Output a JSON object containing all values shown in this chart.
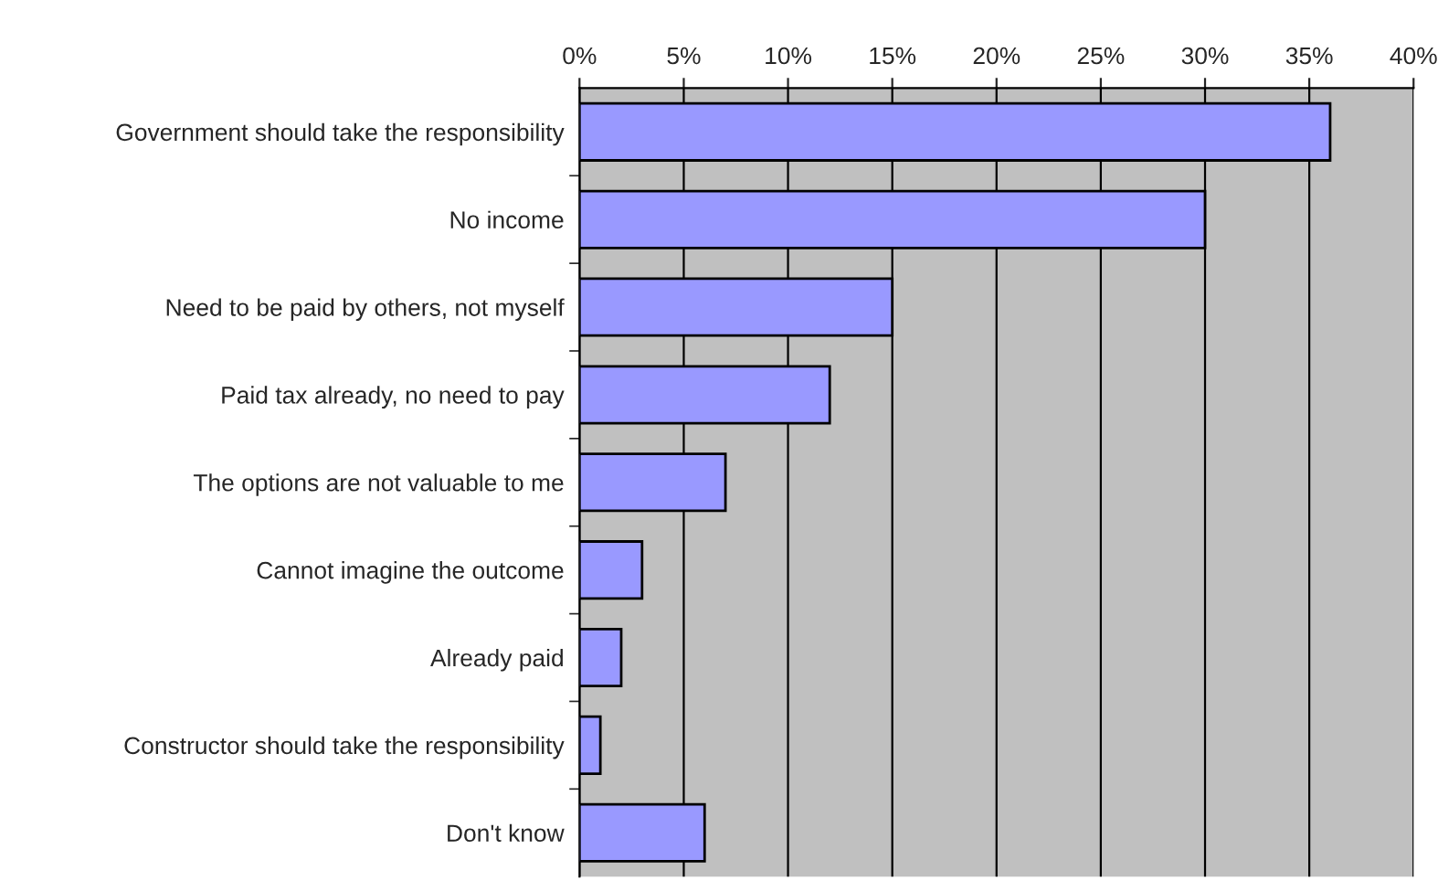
{
  "chart_data": {
    "type": "bar",
    "orientation": "horizontal",
    "categories": [
      "Government should take the responsibility",
      "No income",
      "Need to be paid by others, not myself",
      "Paid tax already, no need to pay",
      "The options are not valuable to me",
      "Cannot imagine the outcome",
      "Already paid",
      "Constructor should take the responsibility",
      "Don't know"
    ],
    "values": [
      36,
      30,
      15,
      12,
      7,
      3,
      2,
      1,
      6
    ],
    "color": "#9999ff",
    "xlim": [
      0,
      40
    ],
    "xticks": [
      {
        "value": 0,
        "label": "0%"
      },
      {
        "value": 5,
        "label": "5%"
      },
      {
        "value": 10,
        "label": "10%"
      },
      {
        "value": 15,
        "label": "15%"
      },
      {
        "value": 20,
        "label": "20%"
      },
      {
        "value": 25,
        "label": "25%"
      },
      {
        "value": 30,
        "label": "30%"
      },
      {
        "value": 35,
        "label": "35%"
      },
      {
        "value": 40,
        "label": "40%"
      }
    ],
    "grid": "x",
    "legend": false
  }
}
